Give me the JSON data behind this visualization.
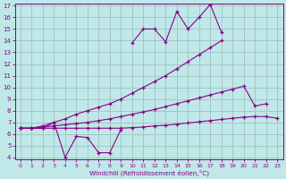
{
  "x": [
    0,
    1,
    2,
    3,
    4,
    5,
    6,
    7,
    8,
    9,
    10,
    11,
    12,
    13,
    14,
    15,
    16,
    17,
    18,
    19,
    20,
    21,
    22,
    23
  ],
  "y_top": [
    null,
    null,
    null,
    null,
    null,
    null,
    null,
    null,
    null,
    null,
    13.8,
    15.0,
    15.0,
    13.9,
    16.5,
    15.0,
    16.0,
    17.1,
    14.7,
    null,
    null,
    null,
    null,
    null
  ],
  "y_upper_diag": [
    6.5,
    6.5,
    6.7,
    7.0,
    7.3,
    7.7,
    8.0,
    8.3,
    8.6,
    9.0,
    9.5,
    10.0,
    10.5,
    11.0,
    11.6,
    12.2,
    12.8,
    13.4,
    14.0,
    null,
    null,
    null,
    null,
    null
  ],
  "y_mid_diag": [
    6.5,
    6.5,
    6.6,
    6.7,
    6.8,
    6.9,
    7.0,
    7.15,
    7.3,
    7.5,
    7.7,
    7.9,
    8.1,
    8.35,
    8.6,
    8.85,
    9.1,
    9.35,
    9.6,
    9.85,
    10.1,
    8.4,
    8.6,
    null
  ],
  "y_lower_diag": [
    6.5,
    6.5,
    6.5,
    6.5,
    6.5,
    6.5,
    6.5,
    6.5,
    6.5,
    6.5,
    6.55,
    6.6,
    6.7,
    6.75,
    6.85,
    6.95,
    7.05,
    7.15,
    7.25,
    7.35,
    7.45,
    7.5,
    7.5,
    7.35
  ],
  "y_zigzag": [
    6.5,
    6.5,
    6.5,
    7.0,
    4.0,
    5.8,
    5.7,
    4.4,
    4.4,
    6.4,
    null,
    null,
    null,
    null,
    null,
    null,
    null,
    null,
    null,
    null,
    null,
    null,
    null,
    null
  ],
  "bg_color": "#c0e8e8",
  "line_color": "#880088",
  "grid_color": "#99bbbb",
  "xlabel": "Windchill (Refroidissement éolien,°C)",
  "ylim": [
    4,
    17
  ],
  "xlim": [
    0,
    23
  ],
  "yticks": [
    4,
    5,
    6,
    7,
    8,
    9,
    10,
    11,
    12,
    13,
    14,
    15,
    16,
    17
  ],
  "xticks": [
    0,
    1,
    2,
    3,
    4,
    5,
    6,
    7,
    8,
    9,
    10,
    11,
    12,
    13,
    14,
    15,
    16,
    17,
    18,
    19,
    20,
    21,
    22,
    23
  ]
}
